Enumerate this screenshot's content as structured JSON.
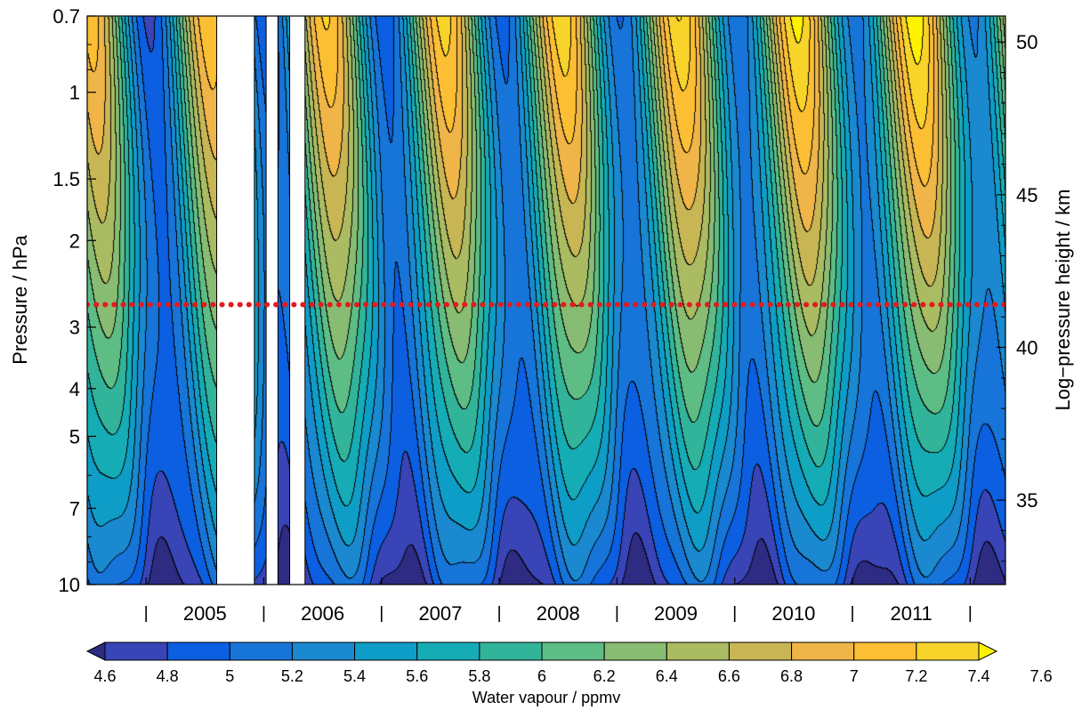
{
  "chart_data": {
    "type": "heatmap",
    "subtype": "filled-contour",
    "xlabel": "",
    "ylabel": "Pressure / hPa",
    "y2label": "Log−pressure height / km",
    "colorbar_label": "Water vapour / ppmv",
    "x_range": [
      2004.0,
      2011.8
    ],
    "y_range_hpa": [
      0.7,
      10
    ],
    "y_scale": "log (reversed)",
    "y_ticks": [
      "0.7",
      "1",
      "1.5",
      "2",
      "3",
      "4",
      "5",
      "7",
      "10"
    ],
    "y_tick_values": [
      0.7,
      1,
      1.5,
      2,
      3,
      4,
      5,
      7,
      10
    ],
    "y2_ticks": [
      "35",
      "40",
      "45",
      "50"
    ],
    "y2_tick_values_km": [
      35,
      40,
      45,
      50
    ],
    "x_years": [
      "2005",
      "2006",
      "2007",
      "2008",
      "2009",
      "2010",
      "2011"
    ],
    "x_year_tick_marks": [
      2004.5,
      2005.5,
      2006.5,
      2007.5,
      2008.5,
      2009.5,
      2010.5,
      2011.5
    ],
    "levels": [
      "4.6",
      "4.8",
      "5",
      "5.2",
      "5.4",
      "5.6",
      "5.8",
      "6",
      "6.2",
      "6.4",
      "6.6",
      "6.8",
      "7",
      "7.2",
      "7.4",
      "7.6"
    ],
    "colors": [
      "#2d2b82",
      "#3944b6",
      "#0b5fe0",
      "#1774d8",
      "#1a89cf",
      "#0e9dc6",
      "#16acb6",
      "#32b49a",
      "#5ebd85",
      "#88bc72",
      "#aabb62",
      "#c8b654",
      "#f0b548",
      "#fcbe33",
      "#f8d32a",
      "#fff200"
    ],
    "data_gaps": [
      [
        2005.1,
        2005.42
      ],
      [
        2005.52,
        2005.62
      ],
      [
        2005.72,
        2005.85
      ]
    ],
    "reference_line": {
      "pressure_hpa": 2.7,
      "color": "#e41a1c",
      "style": "dotted"
    },
    "seasonal_pattern": {
      "description_values": "maximum near 1.5 hPa each year",
      "annual_max_ppmv_at_1_5hpa": [
        {
          "year": 2005,
          "value": 7.2
        },
        {
          "year": 2006,
          "value": 7.2
        },
        {
          "year": 2007,
          "value": 7.2
        },
        {
          "year": 2008,
          "value": 7.4
        },
        {
          "year": 2009,
          "value": 7.6
        },
        {
          "year": 2010,
          "value": 7.2
        },
        {
          "year": 2011,
          "value": 7.4
        }
      ],
      "annual_min_ppmv_at_10hpa": [
        {
          "year": 2005,
          "value": 4.6
        },
        {
          "year": 2007,
          "value": 4.6
        },
        {
          "year": 2008,
          "value": 4.6
        },
        {
          "year": 2009,
          "value": 4.6
        },
        {
          "year": 2010,
          "value": 4.6
        },
        {
          "year": 2011,
          "value": 4.6
        }
      ]
    },
    "legend": "colorbar bottom"
  }
}
